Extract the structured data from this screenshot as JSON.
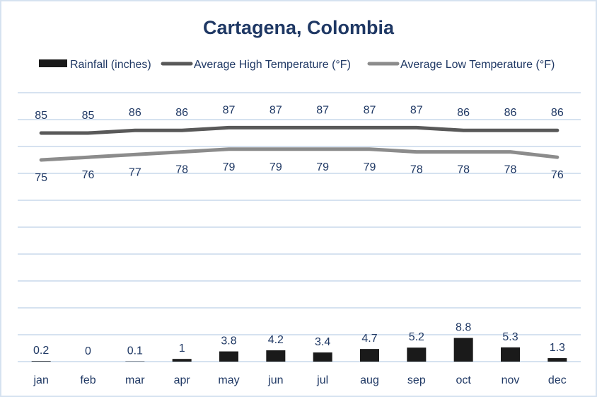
{
  "chart_data": {
    "type": "bar+line",
    "title": "Cartagena, Colombia",
    "categories": [
      "jan",
      "feb",
      "mar",
      "apr",
      "may",
      "jun",
      "jul",
      "aug",
      "sep",
      "oct",
      "nov",
      "dec"
    ],
    "series": [
      {
        "name": "Rainfall (inches)",
        "type": "bar",
        "color": "#1a1a1a",
        "values": [
          0.2,
          0,
          0.1,
          1,
          3.8,
          4.2,
          3.4,
          4.7,
          5.2,
          8.8,
          5.3,
          1.3
        ],
        "labels": [
          "0.2",
          "0",
          "0.1",
          "1",
          "3.8",
          "4.2",
          "3.4",
          "4.7",
          "5.2",
          "8.8",
          "5.3",
          "1.3"
        ]
      },
      {
        "name": "Average High Temperature (°F)",
        "type": "line",
        "color": "#595959",
        "values": [
          85,
          85,
          86,
          86,
          87,
          87,
          87,
          87,
          87,
          86,
          86,
          86
        ],
        "labels": [
          "85",
          "85",
          "86",
          "86",
          "87",
          "87",
          "87",
          "87",
          "87",
          "86",
          "86",
          "86"
        ]
      },
      {
        "name": "Average Low Temperature (°F)",
        "type": "line",
        "color": "#8c8c8c",
        "values": [
          75,
          76,
          77,
          78,
          79,
          79,
          79,
          79,
          78,
          78,
          78,
          76
        ],
        "labels": [
          "75",
          "76",
          "77",
          "78",
          "79",
          "79",
          "79",
          "79",
          "78",
          "78",
          "78",
          "76"
        ]
      }
    ],
    "ylim": [
      0,
      100
    ],
    "y_axis_visible": false,
    "grid": true,
    "legend_position": "top",
    "colors": {
      "title": "#1f3864",
      "text": "#1f3864",
      "grid": "#d6e2f0"
    }
  }
}
